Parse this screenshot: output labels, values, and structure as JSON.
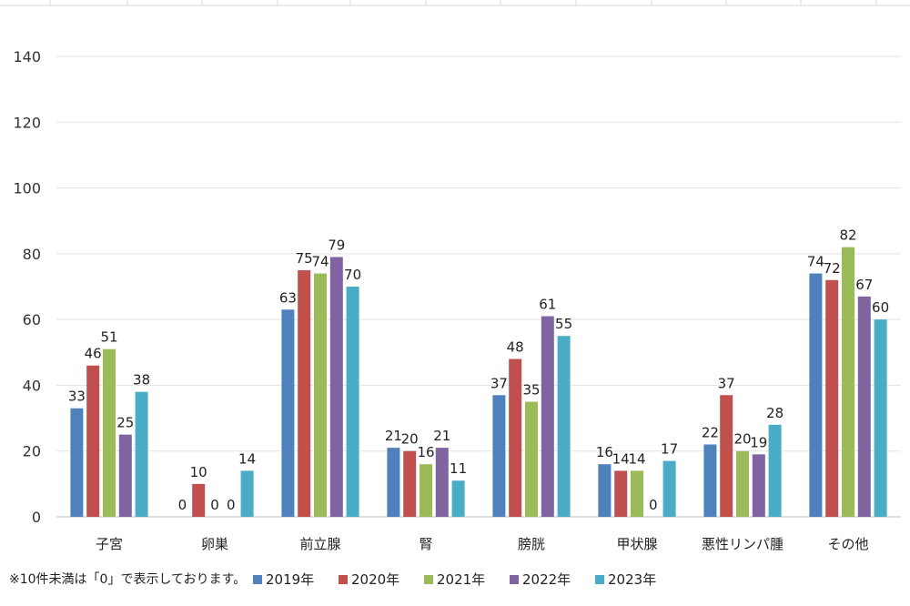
{
  "note": "※10件未満は「0」で表示しております。",
  "chart_data": {
    "type": "bar",
    "categories": [
      "子宮",
      "卵巣",
      "前立腺",
      "腎",
      "膀胱",
      "甲状腺",
      "悪性リンパ腫",
      "その他"
    ],
    "series": [
      {
        "name": "2019年",
        "color": "#4f81bd",
        "values": [
          33,
          0,
          63,
          21,
          37,
          16,
          22,
          74
        ]
      },
      {
        "name": "2020年",
        "color": "#c0504d",
        "values": [
          46,
          10,
          75,
          20,
          48,
          14,
          37,
          72
        ]
      },
      {
        "name": "2021年",
        "color": "#9bbb59",
        "values": [
          51,
          0,
          74,
          16,
          35,
          14,
          20,
          82
        ]
      },
      {
        "name": "2022年",
        "color": "#8064a2",
        "values": [
          25,
          0,
          79,
          21,
          61,
          0,
          19,
          67
        ]
      },
      {
        "name": "2023年",
        "color": "#4bacc6",
        "values": [
          38,
          14,
          70,
          11,
          55,
          17,
          28,
          60
        ]
      }
    ],
    "yticks": [
      0,
      20,
      40,
      60,
      80,
      100,
      120,
      140
    ],
    "ylim": [
      0,
      140
    ],
    "grid": true,
    "legend_position": "bottom",
    "data_labels": true
  }
}
